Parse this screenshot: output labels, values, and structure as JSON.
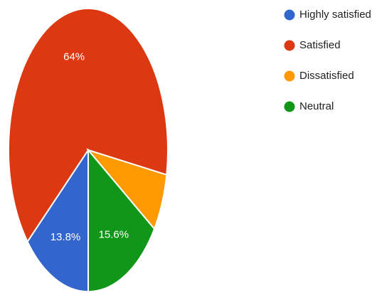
{
  "chart_data": {
    "type": "pie",
    "title": "",
    "legend_position": "right",
    "slices": [
      {
        "label": "Highly satisfied",
        "value": 13.8,
        "display": "13.8%",
        "color": "#3366cc"
      },
      {
        "label": "Satisfied",
        "value": 64,
        "display": "64%",
        "color": "#dc3912"
      },
      {
        "label": "Dissatisfied",
        "value": 6.6,
        "display": "",
        "color": "#ff9900"
      },
      {
        "label": "Neutral",
        "value": 15.6,
        "display": "15.6%",
        "color": "#109618"
      }
    ]
  }
}
